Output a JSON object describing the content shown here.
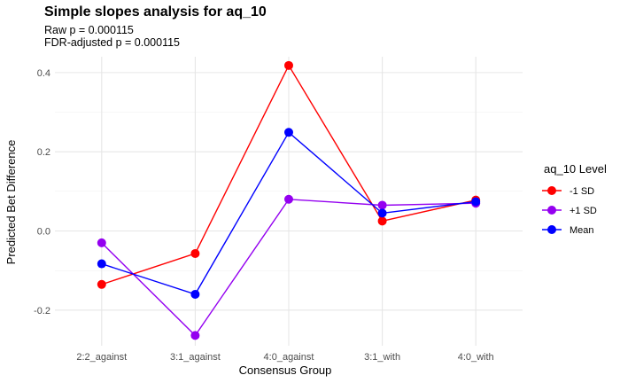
{
  "chart_data": {
    "type": "line",
    "title": "Simple slopes analysis for aq_10",
    "subtitles": [
      "Raw p = 0.000115",
      "FDR-adjusted p = 0.000115"
    ],
    "xlabel": "Consensus Group",
    "ylabel": "Predicted Bet Difference",
    "categories": [
      "2:2_against",
      "3:1_against",
      "4:0_against",
      "3:1_with",
      "4:0_with"
    ],
    "yticks": [
      -0.2,
      0.0,
      0.2,
      0.4
    ],
    "ytick_labels": [
      "-0.2",
      "0.0",
      "0.2",
      "0.4"
    ],
    "ylim": [
      -0.29,
      0.44
    ],
    "grid": true,
    "legend_title": "aq_10 Level",
    "legend_position": "right",
    "series": [
      {
        "name": "-1 SD",
        "color": "#ff0000",
        "values": [
          -0.135,
          -0.057,
          0.418,
          0.025,
          0.078
        ]
      },
      {
        "name": "+1 SD",
        "color": "#9400f0",
        "values": [
          -0.03,
          -0.264,
          0.08,
          0.065,
          0.07
        ]
      },
      {
        "name": "Mean",
        "color": "#0000ff",
        "values": [
          -0.083,
          -0.16,
          0.249,
          0.045,
          0.074
        ]
      }
    ]
  }
}
